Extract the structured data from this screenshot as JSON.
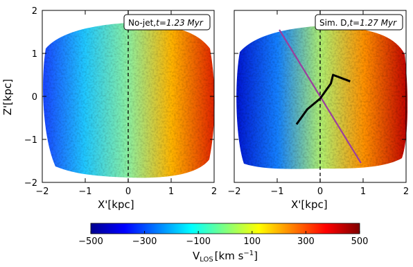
{
  "chart_data": [
    {
      "type": "heatmap",
      "panel_label": "No-jet,",
      "time_label": "t=1.23 Myr",
      "xlabel": "X'[kpc]",
      "ylabel": "Z'[kpc]",
      "xlim": [
        -2,
        2
      ],
      "ylim": [
        -2,
        2
      ],
      "xticks": [
        "−2",
        "−1",
        "0",
        "1",
        "2"
      ],
      "yticks": [
        "−2",
        "−1",
        "0",
        "1",
        "2"
      ],
      "x_gradient": {
        "x": [
          -2,
          -1,
          0,
          1,
          2
        ],
        "vlos": [
          -420,
          -180,
          40,
          260,
          440
        ]
      },
      "annotations": [
        "dashed vertical line at X'=0"
      ]
    },
    {
      "type": "heatmap",
      "panel_label": "Sim. D,",
      "time_label": "t=1.27 Myr",
      "xlabel": "X'[kpc]",
      "xlim": [
        -2,
        2
      ],
      "ylim": [
        -2,
        2
      ],
      "xticks": [
        "−2",
        "−1",
        "0",
        "1",
        "2"
      ],
      "x_gradient": {
        "x": [
          -2,
          -1,
          0,
          1,
          2
        ],
        "vlos": [
          -460,
          -230,
          20,
          300,
          470
        ]
      },
      "jet_axis_line": {
        "x": [
          -0.95,
          0.95
        ],
        "y": [
          1.55,
          -1.55
        ],
        "color": "#9b3d9e"
      },
      "jet_trace": {
        "x": [
          -0.55,
          -0.3,
          0.0,
          0.25,
          0.3,
          0.7
        ],
        "y": [
          -0.65,
          -0.3,
          -0.05,
          0.3,
          0.5,
          0.35
        ],
        "color": "#000000"
      },
      "annotations": [
        "dashed vertical line at X'=0"
      ]
    }
  ],
  "colorbar": {
    "label": "V",
    "label_sub": "LOS",
    "label_unit": "[km s",
    "label_sup": "−1",
    "label_close": "]",
    "ticks": [
      "−500",
      "−300",
      "−100",
      "100",
      "300",
      "500"
    ],
    "range": [
      -500,
      500
    ],
    "colormap": "jet"
  },
  "colors": {
    "dark_blue": "#00008f",
    "blue": "#0064ff",
    "cyan": "#1ee6ff",
    "yellow": "#ffe400",
    "orange": "#ff7a00",
    "red": "#c80000",
    "dark_red": "#800000",
    "jet_axis": "#9b3d9e"
  }
}
